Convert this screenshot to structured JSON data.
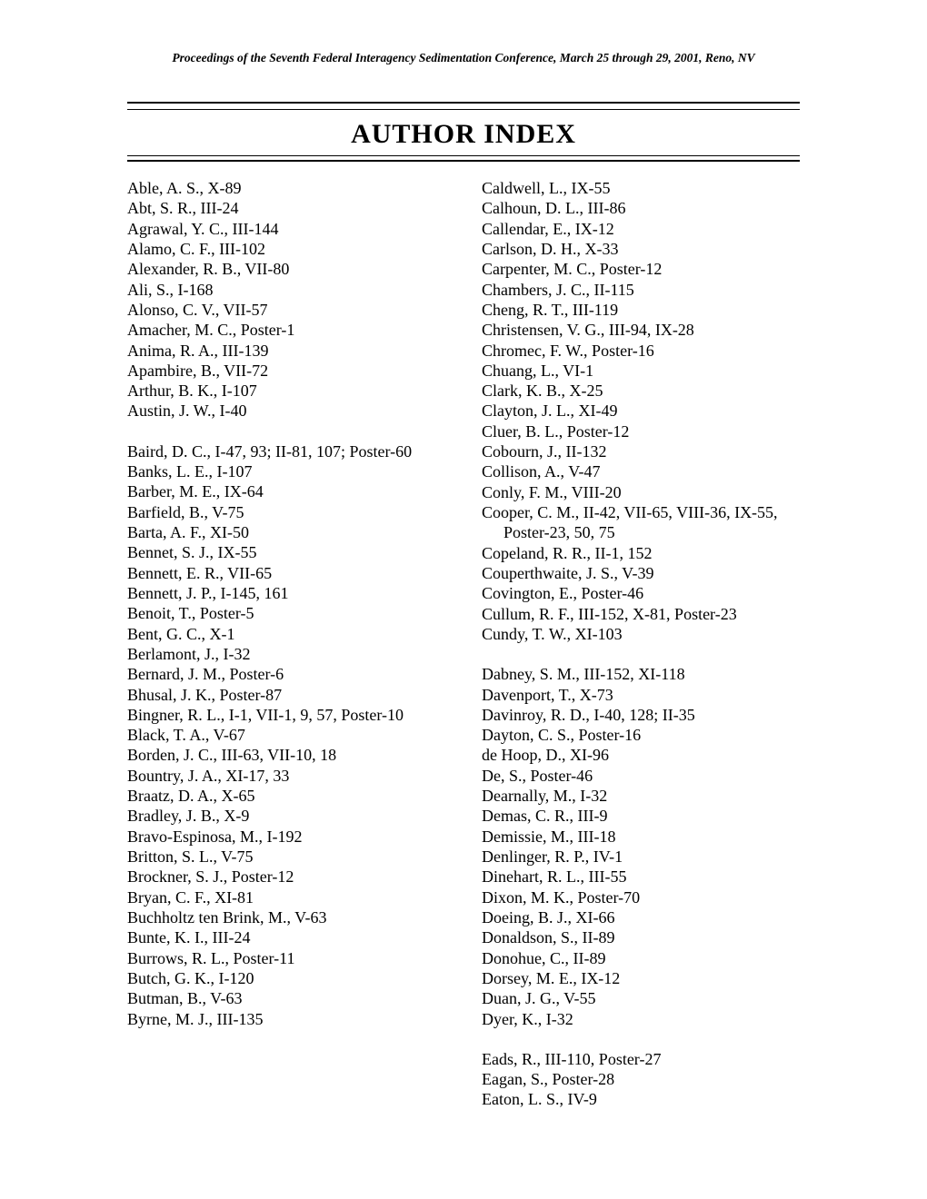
{
  "header": {
    "running_head": "Proceedings of the Seventh Federal Interagency Sedimentation Conference, March 25 through 29, 2001, Reno, NV",
    "title": "AUTHOR  INDEX"
  },
  "left_groups": [
    [
      "Able, A. S., X-89",
      "Abt, S. R., III-24",
      "Agrawal, Y. C., III-144",
      "Alamo, C. F., III-102",
      "Alexander, R. B., VII-80",
      "Ali, S., I-168",
      "Alonso, C. V., VII-57",
      "Amacher, M. C., Poster-1",
      "Anima, R. A., III-139",
      "Apambire, B., VII-72",
      "Arthur, B. K., I-107",
      "Austin, J. W., I-40"
    ],
    [
      "Baird, D. C., I-47, 93; II-81, 107; Poster-60",
      "Banks, L. E., I-107",
      "Barber, M. E., IX-64",
      "Barfield, B., V-75",
      "Barta, A. F., XI-50",
      "Bennet, S. J., IX-55",
      "Bennett, E. R., VII-65",
      "Bennett, J. P., I-145, 161",
      "Benoit, T., Poster-5",
      "Bent, G. C., X-1",
      "Berlamont, J., I-32",
      "Bernard, J. M., Poster-6",
      "Bhusal, J. K., Poster-87",
      "Bingner, R. L., I-1, VII-1, 9, 57, Poster-10",
      "Black, T. A., V-67",
      "Borden, J. C., III-63, VII-10, 18",
      "Bountry, J. A., XI-17, 33",
      "Braatz, D. A., X-65",
      "Bradley, J. B., X-9",
      "Bravo-Espinosa, M., I-192",
      "Britton, S. L., V-75",
      "Brockner, S. J., Poster-12",
      "Bryan, C. F., XI-81",
      "Buchholtz ten Brink, M., V-63",
      "Bunte, K. I., III-24",
      "Burrows, R. L., Poster-11",
      "Butch, G. K., I-120",
      "Butman, B., V-63",
      "Byrne, M. J., III-135"
    ]
  ],
  "right_groups": [
    [
      "Caldwell, L., IX-55",
      "Calhoun, D. L., III-86",
      "Callendar, E., IX-12",
      "Carlson, D. H., X-33",
      "Carpenter, M. C., Poster-12",
      "Chambers, J. C., II-115",
      "Cheng, R. T., III-119",
      "Christensen, V. G., III-94, IX-28",
      "Chromec, F. W., Poster-16",
      "Chuang, L., VI-1",
      "Clark, K. B., X-25",
      "Clayton, J. L., XI-49",
      "Cluer, B. L., Poster-12",
      "Cobourn, J., II-132",
      "Collison, A., V-47",
      "Conly, F. M., VIII-20",
      "Cooper, C. M., II-42, VII-65, VIII-36, IX-55, Poster-23, 50, 75",
      "Copeland, R. R., II-1, 152",
      "Couperthwaite, J. S., V-39",
      "Covington, E., Poster-46",
      "Cullum, R. F., III-152, X-81, Poster-23",
      "Cundy, T. W., XI-103"
    ],
    [
      "Dabney, S. M., III-152, XI-118",
      "Davenport, T., X-73",
      "Davinroy, R. D., I-40, 128; II-35",
      "Dayton, C. S., Poster-16",
      "de Hoop, D., XI-96",
      "De, S., Poster-46",
      "Dearnally, M., I-32",
      "Demas, C. R., III-9",
      "Demissie, M., III-18",
      "Denlinger, R. P., IV-1",
      "Dinehart, R. L., III-55",
      "Dixon, M. K., Poster-70",
      "Doeing, B. J., XI-66",
      "Donaldson, S., II-89",
      "Donohue, C., II-89",
      "Dorsey, M. E., IX-12",
      "Duan, J. G., V-55",
      "Dyer, K., I-32"
    ],
    [
      "Eads, R., III-110, Poster-27",
      "Eagan, S., Poster-28",
      "Eaton, L. S., IV-9"
    ]
  ]
}
